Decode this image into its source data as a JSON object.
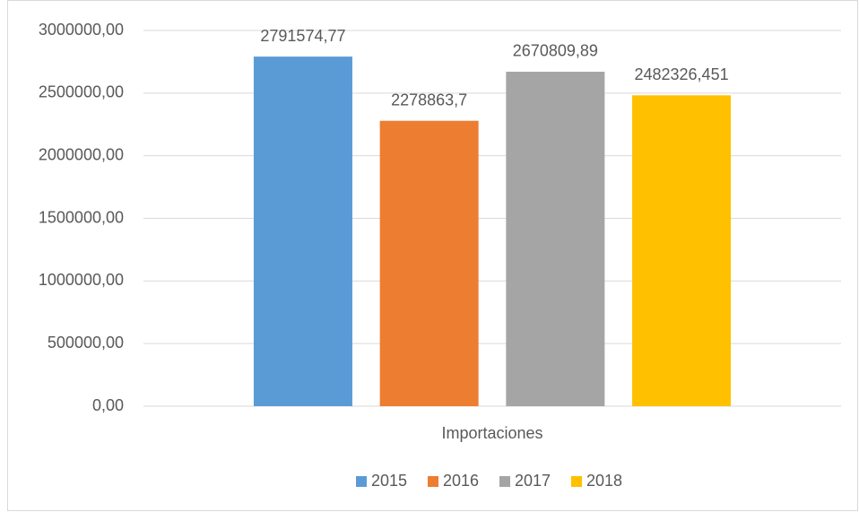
{
  "chart_data": {
    "type": "bar",
    "categories": [
      "Importaciones"
    ],
    "series": [
      {
        "name": "2015",
        "color": "#5b9bd5",
        "values": [
          2791574.77
        ],
        "value_labels": [
          "2791574,77"
        ]
      },
      {
        "name": "2016",
        "color": "#ed7d31",
        "values": [
          2278863.7
        ],
        "value_labels": [
          "2278863,7"
        ]
      },
      {
        "name": "2017",
        "color": "#a5a5a5",
        "values": [
          2670809.89
        ],
        "value_labels": [
          "2670809,89"
        ]
      },
      {
        "name": "2018",
        "color": "#ffc000",
        "values": [
          2482326.451
        ],
        "value_labels": [
          "2482326,451"
        ]
      }
    ],
    "ylim": [
      0,
      3000000
    ],
    "yticks": [
      {
        "value": 0,
        "label": "0,00"
      },
      {
        "value": 500000,
        "label": "500000,00"
      },
      {
        "value": 1000000,
        "label": "1000000,00"
      },
      {
        "value": 1500000,
        "label": "1500000,00"
      },
      {
        "value": 2000000,
        "label": "2000000,00"
      },
      {
        "value": 2500000,
        "label": "2500000,00"
      },
      {
        "value": 3000000,
        "label": "3000000,00"
      }
    ],
    "grid": true,
    "legend": "bottom"
  }
}
